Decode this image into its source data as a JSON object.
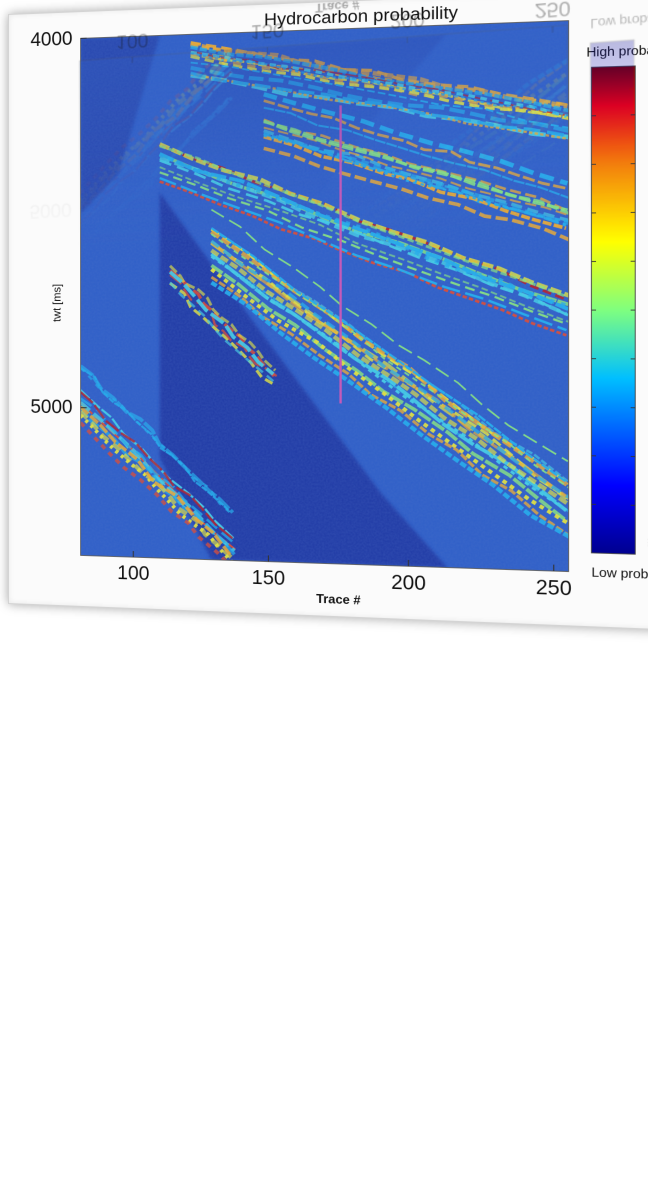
{
  "chart_data": {
    "type": "heatmap",
    "title": "Hydrocarbon probability",
    "xlabel": "Trace #",
    "ylabel": "twt [ms]",
    "x_ticks": [
      100,
      150,
      200,
      250
    ],
    "y_ticks": [
      4000,
      5000
    ],
    "xlim": [
      80,
      255
    ],
    "ylim": [
      4000,
      5400
    ],
    "y_inverted": true,
    "colorbar": {
      "high_label": "High probability",
      "low_label": "Low probability",
      "colormap": "jet",
      "colors": [
        "#00008f",
        "#0000ff",
        "#00bfff",
        "#7fff7f",
        "#ffff00",
        "#ff7f00",
        "#ff0000",
        "#800000"
      ]
    },
    "well_marker": {
      "trace": 176,
      "twt_top": 4200,
      "twt_bottom": 4980,
      "color": "#c55ab8"
    },
    "grid": false
  },
  "colors": {
    "background_field": "#2f5fc8",
    "card_border": "#d4d4d4"
  }
}
